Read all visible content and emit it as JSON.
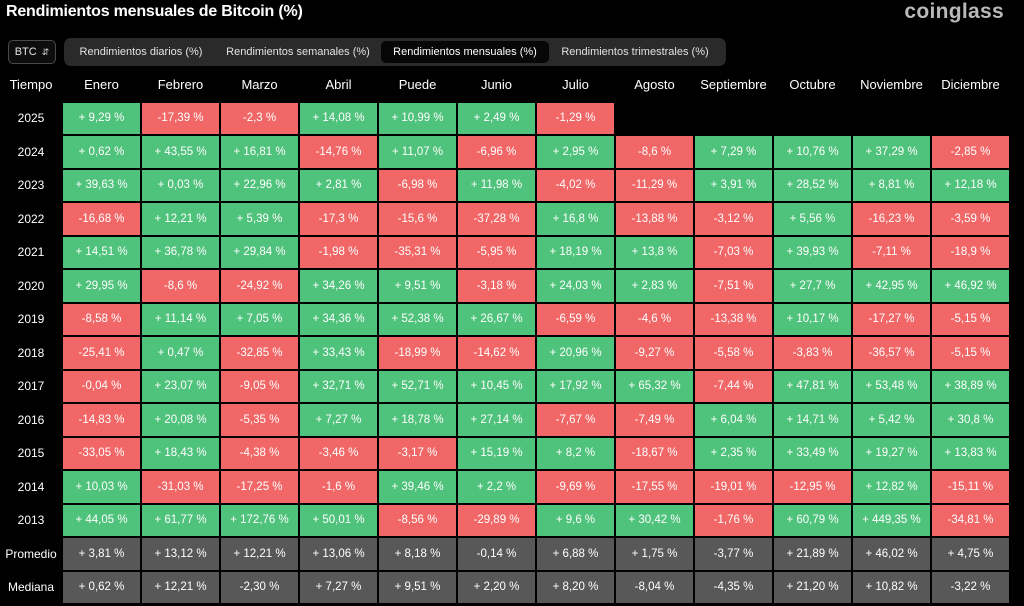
{
  "title": "Rendimientos mensuales de Bitcoin (%)",
  "logo": "coinglass",
  "asset_select": {
    "value": "BTC"
  },
  "tabs": [
    {
      "label": "Rendimientos diarios (%)",
      "active": false
    },
    {
      "label": "Rendimientos semanales (%)",
      "active": false
    },
    {
      "label": "Rendimientos mensuales (%)",
      "active": true
    },
    {
      "label": "Rendimientos trimestrales (%)",
      "active": false
    }
  ],
  "table": {
    "corner_label": "Tiempo",
    "months": [
      "Enero",
      "Febrero",
      "Marzo",
      "Abril",
      "Puede",
      "Junio",
      "Julio",
      "Agosto",
      "Septiembre",
      "Octubre",
      "Noviembre",
      "Diciembre"
    ],
    "rows": [
      {
        "year": "2025",
        "cells": [
          "+ 9,29 %",
          "-17,39 %",
          "-2,3 %",
          "+ 14,08 %",
          "+ 10,99 %",
          "+ 2,49 %",
          "-1,29 %",
          "",
          "",
          "",
          "",
          ""
        ]
      },
      {
        "year": "2024",
        "cells": [
          "+ 0,62 %",
          "+ 43,55 %",
          "+ 16,81 %",
          "-14,76 %",
          "+ 11,07 %",
          "-6,96 %",
          "+ 2,95 %",
          "-8,6 %",
          "+ 7,29 %",
          "+ 10,76 %",
          "+ 37,29 %",
          "-2,85 %"
        ]
      },
      {
        "year": "2023",
        "cells": [
          "+ 39,63 %",
          "+ 0,03 %",
          "+ 22,96 %",
          "+ 2,81 %",
          "-6,98 %",
          "+ 11,98 %",
          "-4,02 %",
          "-11,29 %",
          "+ 3,91 %",
          "+ 28,52 %",
          "+ 8,81 %",
          "+ 12,18 %"
        ]
      },
      {
        "year": "2022",
        "cells": [
          "-16,68 %",
          "+ 12,21 %",
          "+ 5,39 %",
          "-17,3 %",
          "-15,6 %",
          "-37,28 %",
          "+ 16,8 %",
          "-13,88 %",
          "-3,12 %",
          "+ 5,56 %",
          "-16,23 %",
          "-3,59 %"
        ]
      },
      {
        "year": "2021",
        "cells": [
          "+ 14,51 %",
          "+ 36,78 %",
          "+ 29,84 %",
          "-1,98 %",
          "-35,31 %",
          "-5,95 %",
          "+ 18,19 %",
          "+ 13,8 %",
          "-7,03 %",
          "+ 39,93 %",
          "-7,11 %",
          "-18,9 %"
        ]
      },
      {
        "year": "2020",
        "cells": [
          "+ 29,95 %",
          "-8,6 %",
          "-24,92 %",
          "+ 34,26 %",
          "+ 9,51 %",
          "-3,18 %",
          "+ 24,03 %",
          "+ 2,83 %",
          "-7,51 %",
          "+ 27,7 %",
          "+ 42,95 %",
          "+ 46,92 %"
        ]
      },
      {
        "year": "2019",
        "cells": [
          "-8,58 %",
          "+ 11,14 %",
          "+ 7,05 %",
          "+ 34,36 %",
          "+ 52,38 %",
          "+ 26,67 %",
          "-6,59 %",
          "-4,6 %",
          "-13,38 %",
          "+ 10,17 %",
          "-17,27 %",
          "-5,15 %"
        ]
      },
      {
        "year": "2018",
        "cells": [
          "-25,41 %",
          "+ 0,47 %",
          "-32,85 %",
          "+ 33,43 %",
          "-18,99 %",
          "-14,62 %",
          "+ 20,96 %",
          "-9,27 %",
          "-5,58 %",
          "-3,83 %",
          "-36,57 %",
          "-5,15 %"
        ]
      },
      {
        "year": "2017",
        "cells": [
          "-0,04 %",
          "+ 23,07 %",
          "-9,05 %",
          "+ 32,71 %",
          "+ 52,71 %",
          "+ 10,45 %",
          "+ 17,92 %",
          "+ 65,32 %",
          "-7,44 %",
          "+ 47,81 %",
          "+ 53,48 %",
          "+ 38,89 %"
        ]
      },
      {
        "year": "2016",
        "cells": [
          "-14,83 %",
          "+ 20,08 %",
          "-5,35 %",
          "+ 7,27 %",
          "+ 18,78 %",
          "+ 27,14 %",
          "-7,67 %",
          "-7,49 %",
          "+ 6,04 %",
          "+ 14,71 %",
          "+ 5,42 %",
          "+ 30,8 %"
        ]
      },
      {
        "year": "2015",
        "cells": [
          "-33,05 %",
          "+ 18,43 %",
          "-4,38 %",
          "-3,46 %",
          "-3,17 %",
          "+ 15,19 %",
          "+ 8,2 %",
          "-18,67 %",
          "+ 2,35 %",
          "+ 33,49 %",
          "+ 19,27 %",
          "+ 13,83 %"
        ]
      },
      {
        "year": "2014",
        "cells": [
          "+ 10,03 %",
          "-31,03 %",
          "-17,25 %",
          "-1,6 %",
          "+ 39,46 %",
          "+ 2,2 %",
          "-9,69 %",
          "-17,55 %",
          "-19,01 %",
          "-12,95 %",
          "+ 12,82 %",
          "-15,11 %"
        ]
      },
      {
        "year": "2013",
        "cells": [
          "+ 44,05 %",
          "+ 61,77 %",
          "+ 172,76 %",
          "+ 50,01 %",
          "-8,56 %",
          "-29,89 %",
          "+ 9,6 %",
          "+ 30,42 %",
          "-1,76 %",
          "+ 60,79 %",
          "+ 449,35 %",
          "-34,81 %"
        ]
      }
    ],
    "stat_rows": [
      {
        "label": "Promedio",
        "cells": [
          "+ 3,81 %",
          "+ 13,12 %",
          "+ 12,21 %",
          "+ 13,06 %",
          "+ 8,18 %",
          "-0,14 %",
          "+ 6,88 %",
          "+ 1,75 %",
          "-3,77 %",
          "+ 21,89 %",
          "+ 46,02 %",
          "+ 4,75 %"
        ]
      },
      {
        "label": "Mediana",
        "cells": [
          "+ 0,62 %",
          "+ 12,21 %",
          "-2,30 %",
          "+ 7,27 %",
          "+ 9,51 %",
          "+ 2,20 %",
          "+ 8,20 %",
          "-8,04 %",
          "-4,35 %",
          "+ 21,20 %",
          "+ 10,82 %",
          "-3,22 %"
        ]
      }
    ]
  },
  "colors": {
    "positive": "#4fc27b",
    "negative": "#f16767",
    "stat": "#585858",
    "background": "#000000"
  }
}
